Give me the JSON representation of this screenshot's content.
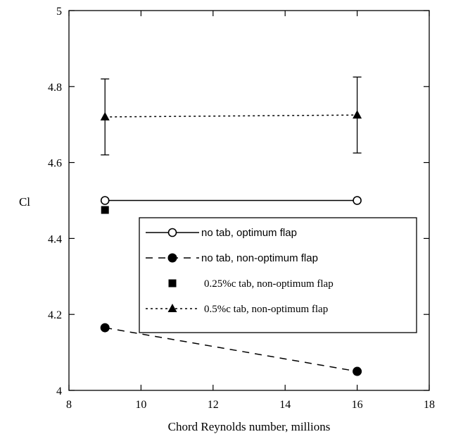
{
  "chart_data": {
    "type": "scatter",
    "title": "",
    "xlabel": "Chord Reynolds number, millions",
    "ylabel": "Cl",
    "xlim": [
      8,
      18
    ],
    "ylim": [
      4,
      5
    ],
    "xticks": [
      8,
      10,
      12,
      14,
      16,
      18
    ],
    "yticks": [
      4,
      4.2,
      4.4,
      4.6,
      4.8,
      5
    ],
    "xtick_labels": [
      "8",
      "10",
      "12",
      "14",
      "16",
      "18"
    ],
    "ytick_labels": [
      "4",
      "4.2",
      "4.4",
      "4.6",
      "4.8",
      "5"
    ],
    "grid": false,
    "legend_position": "lower-right",
    "series": [
      {
        "name": "no tab, optimum flap",
        "marker": "open-circle",
        "line": "solid",
        "points": [
          {
            "x": 9,
            "y": 4.5
          },
          {
            "x": 16,
            "y": 4.5
          }
        ]
      },
      {
        "name": "no tab, non-optimum flap",
        "marker": "filled-circle",
        "line": "dashed",
        "points": [
          {
            "x": 9,
            "y": 4.165
          },
          {
            "x": 16,
            "y": 4.05
          }
        ]
      },
      {
        "name": "0.25%c tab, non-optimum flap",
        "marker": "filled-square",
        "line": "none",
        "points": [
          {
            "x": 9,
            "y": 4.475
          }
        ]
      },
      {
        "name": "0.5%c tab, non-optimum flap",
        "marker": "filled-triangle",
        "line": "dotted",
        "points": [
          {
            "x": 9,
            "y": 4.72,
            "err_low": 4.62,
            "err_high": 4.82
          },
          {
            "x": 16,
            "y": 4.725,
            "err_low": 4.625,
            "err_high": 4.825
          }
        ]
      }
    ]
  }
}
